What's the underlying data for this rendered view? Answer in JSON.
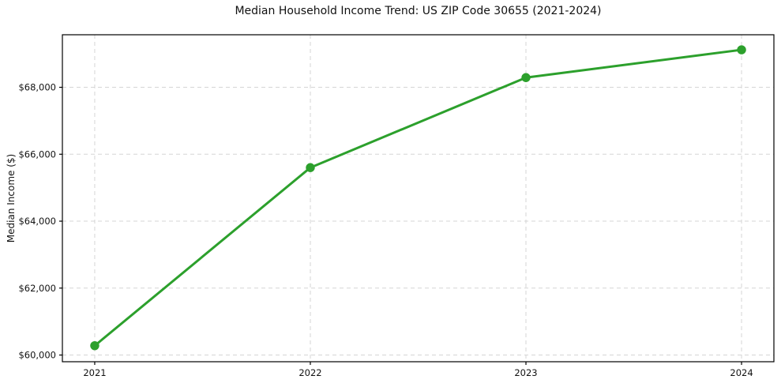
{
  "chart_data": {
    "type": "line",
    "title": "Median Household Income Trend: US ZIP Code 30655 (2021-2024)",
    "xlabel": "",
    "ylabel": "Median Income ($)",
    "x": [
      2021,
      2022,
      2023,
      2024
    ],
    "series": [
      {
        "name": "Median Household Income",
        "values": [
          60280,
          65600,
          68290,
          69120
        ],
        "color": "#2ca02c",
        "marker": "circle"
      }
    ],
    "x_tick_labels": [
      "2021",
      "2022",
      "2023",
      "2024"
    ],
    "y_ticks": [
      60000,
      62000,
      64000,
      66000,
      68000
    ],
    "y_tick_labels": [
      "$60,000",
      "$62,000",
      "$64,000",
      "$66,000",
      "$68,000"
    ],
    "xlim": [
      2020.85,
      2024.15
    ],
    "ylim": [
      59800,
      69570
    ],
    "grid": true,
    "grid_style": "dashed",
    "grid_color": "#d5d5d5",
    "axis_color": "#000000",
    "text_color": "#111111",
    "legend_position": "none",
    "background": "#ffffff"
  }
}
